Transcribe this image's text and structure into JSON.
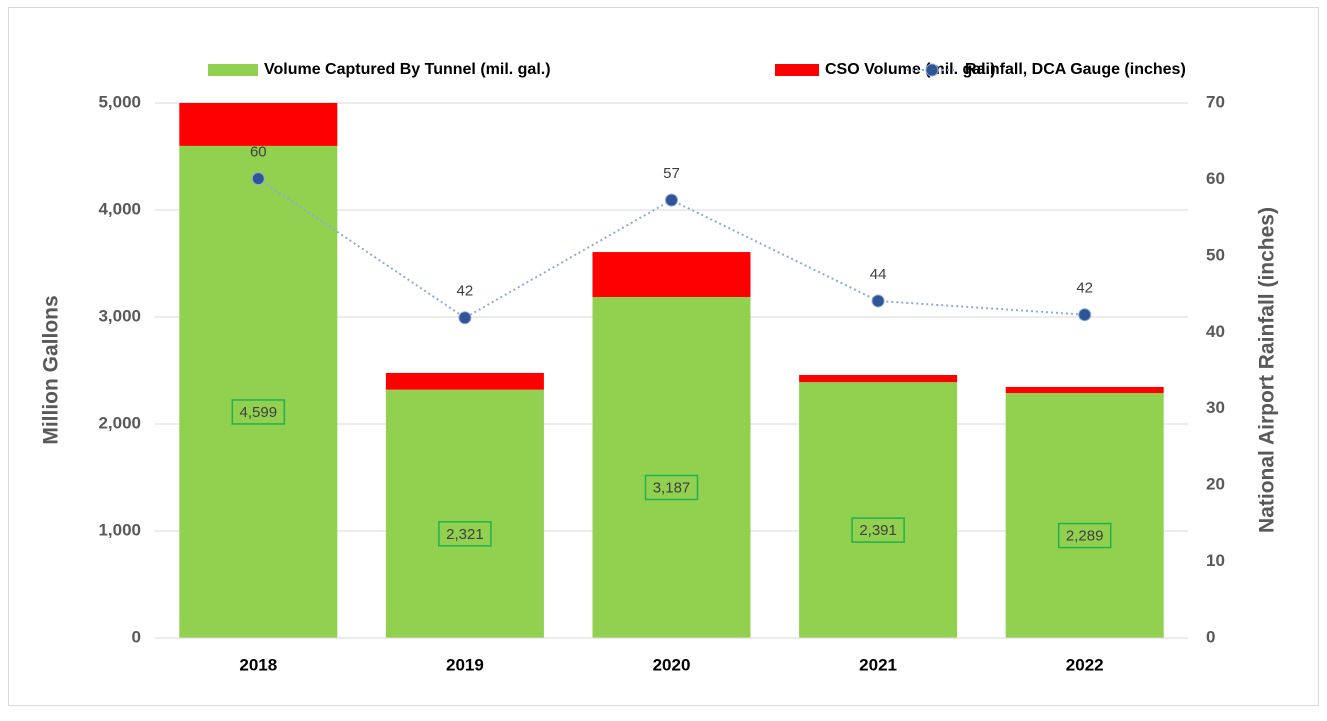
{
  "chart_data": {
    "type": "bar",
    "categories": [
      "2018",
      "2019",
      "2020",
      "2021",
      "2022"
    ],
    "series": [
      {
        "name": "Volume Captured By Tunnel (mil. gal.)",
        "color": "#92d050",
        "values": [
          4599,
          2321,
          3187,
          2391,
          2289
        ],
        "value_labels": [
          "4,599",
          "2,321",
          "3,187",
          "2,391",
          "2,289"
        ]
      },
      {
        "name": "CSO Volume (mil. gal.)",
        "color": "#ff0000",
        "values": [
          401,
          156,
          420,
          67,
          57
        ]
      },
      {
        "name": "Rainfall, DCA Gauge (inches)",
        "color": "#8eaadb",
        "marker_color": "#2f5597",
        "type": "line",
        "axis": "y2",
        "values": [
          60.1,
          41.9,
          57.3,
          44.1,
          42.3
        ],
        "value_labels": [
          "60",
          "42",
          "57",
          "44",
          "42"
        ]
      }
    ],
    "ylabel": "Million Gallons",
    "y2label": "National Airport Rainfall (inches)",
    "ylim": [
      0,
      5000
    ],
    "yticks": [
      0,
      {
        "value": 1000,
        "label": "1,000"
      },
      {
        "value": 2000,
        "label": "2,000"
      },
      {
        "value": 3000,
        "label": "3,000"
      },
      {
        "value": 4000,
        "label": "4,000"
      },
      {
        "value": 5000,
        "label": "5,000"
      }
    ],
    "y2lim": [
      0,
      70
    ],
    "y2ticks": [
      0,
      10,
      20,
      30,
      40,
      50,
      60,
      70
    ],
    "grid": true,
    "legend": "top"
  }
}
